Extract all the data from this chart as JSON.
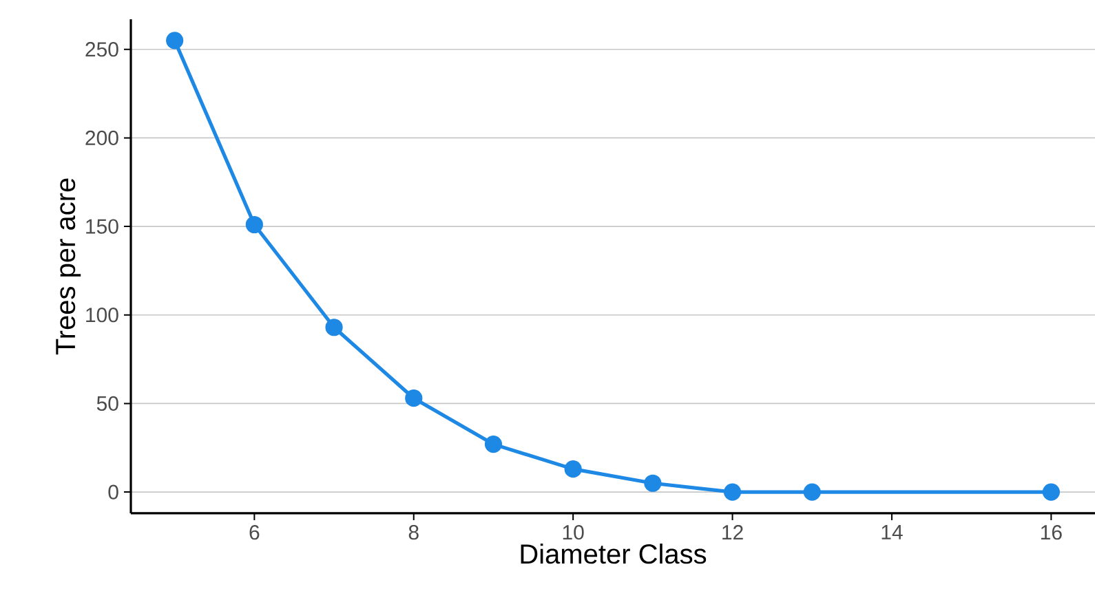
{
  "chart_data": {
    "type": "line",
    "xlabel": "Diameter Class",
    "ylabel": "Trees per acre",
    "x": [
      5,
      6,
      7,
      8,
      9,
      10,
      11,
      12,
      13,
      16
    ],
    "series": [
      {
        "color": "#1e88e5",
        "values": [
          255,
          151,
          93,
          53,
          27,
          13,
          5,
          0,
          0,
          0
        ]
      }
    ],
    "xlim": [
      4.45,
      16.55
    ],
    "ylim": [
      -12,
      267
    ],
    "xticks": [
      6,
      8,
      10,
      12,
      14,
      16
    ],
    "yticks": [
      0,
      50,
      100,
      150,
      200,
      250
    ],
    "grid": "y",
    "marker": "circle",
    "line_style": "solid"
  }
}
